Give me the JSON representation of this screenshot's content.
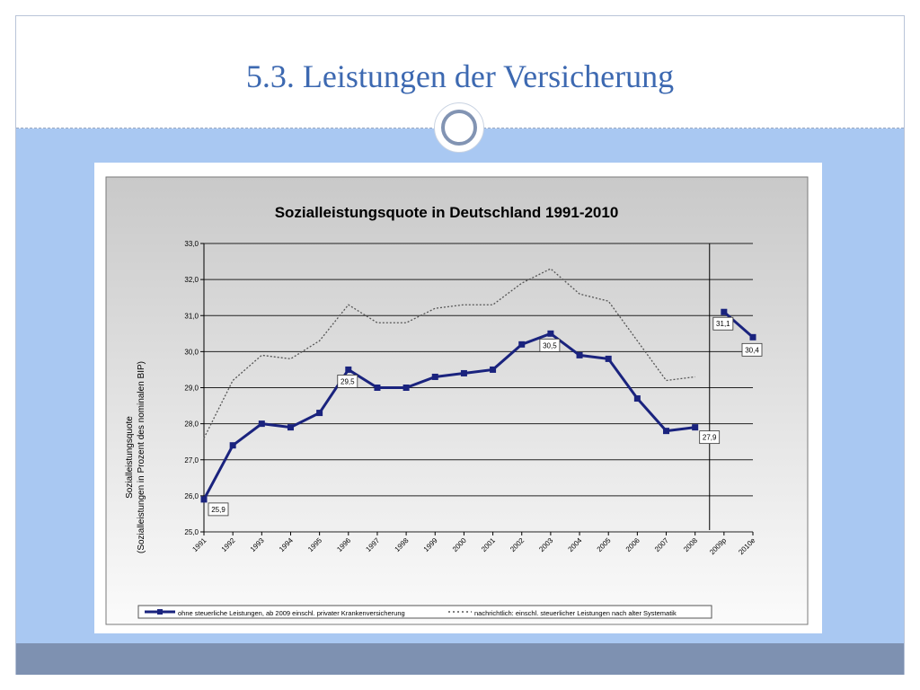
{
  "slide": {
    "title": "5.3. Leistungen der Versicherung"
  },
  "colors": {
    "title": "#3d69b1",
    "band": "#a9c8f2",
    "footer": "#7e91b1",
    "series_main": "#1a237e",
    "series_dotted": "#555555"
  },
  "chart_data": {
    "type": "line",
    "title": "Sozialleistungsquote in Deutschland 1991-2010",
    "ylabel": "Sozialleistungsquote",
    "ylabel2": "(Sozialleistungen in Prozent des nominalen BIP)",
    "categories": [
      "1991",
      "1992",
      "1993",
      "1994",
      "1995",
      "1996",
      "1997",
      "1998",
      "1999",
      "2000",
      "2001",
      "2002",
      "2003",
      "2004",
      "2005",
      "2006",
      "2007",
      "2008",
      "2009p",
      "2010e"
    ],
    "yticks": [
      "25,0",
      "26,0",
      "27,0",
      "28,0",
      "29,0",
      "30,0",
      "31,0",
      "32,0",
      "33,0"
    ],
    "ylim": [
      25,
      33
    ],
    "grid": true,
    "legend_position": "bottom",
    "series": [
      {
        "name": "ohne steuerliche Leistungen, ab 2009 einschl. privater Krankenversicherung",
        "style": "solid-markers",
        "values": [
          25.9,
          27.4,
          28.0,
          27.9,
          28.3,
          29.5,
          29.0,
          29.0,
          29.3,
          29.4,
          29.5,
          30.2,
          30.5,
          29.9,
          29.8,
          28.7,
          27.8,
          27.9,
          31.1,
          30.4
        ],
        "break_after_index": 17
      },
      {
        "name": "nachrichtlich: einschl. steuerlicher Leistungen nach alter Systematik",
        "style": "dotted",
        "values": [
          27.6,
          29.2,
          29.9,
          29.8,
          30.3,
          31.3,
          30.8,
          30.8,
          31.2,
          31.3,
          31.3,
          31.9,
          32.3,
          31.6,
          31.4,
          30.3,
          29.2,
          29.3,
          null,
          null
        ]
      }
    ],
    "data_labels": [
      {
        "index": 0,
        "text": "25,9"
      },
      {
        "index": 5,
        "text": "29,5"
      },
      {
        "index": 12,
        "text": "30,5"
      },
      {
        "index": 17,
        "text": "27,9"
      },
      {
        "index": 18,
        "text": "31,1"
      },
      {
        "index": 19,
        "text": "30,4"
      }
    ],
    "separator_after": "2008"
  }
}
